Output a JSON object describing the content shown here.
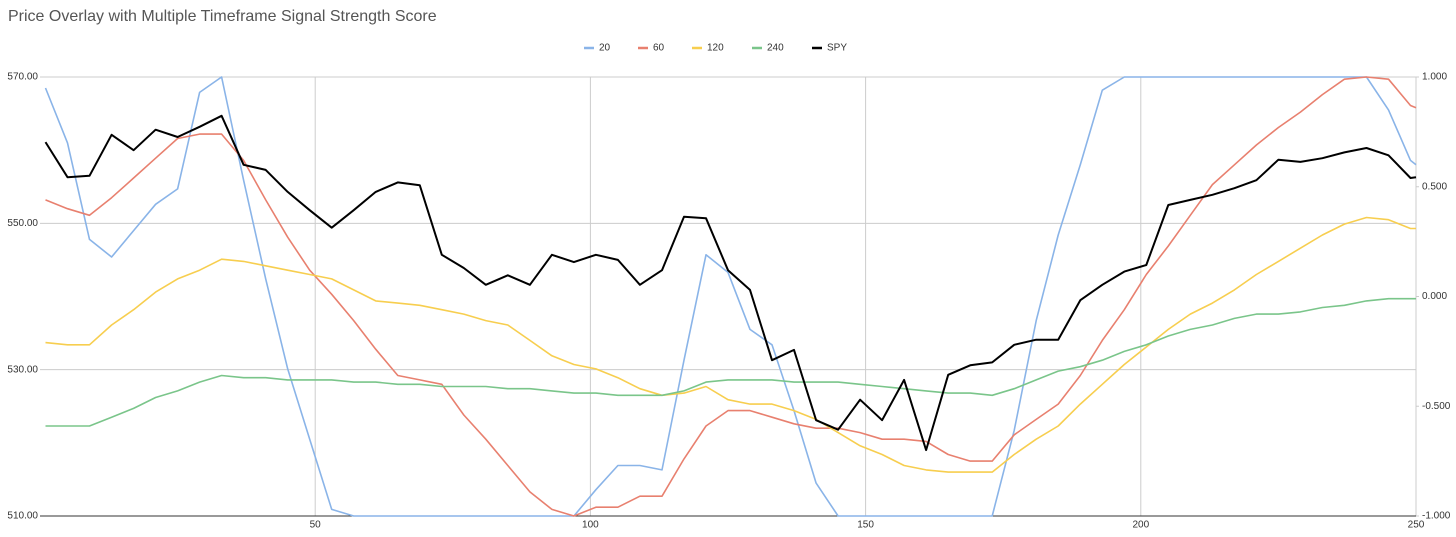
{
  "chart_data": {
    "type": "line",
    "title": "Price Overlay with Multiple Timeframe Signal Strength Score",
    "legend": "top",
    "grid": true,
    "x": [
      1,
      5,
      9,
      13,
      17,
      21,
      25,
      29,
      33,
      37,
      41,
      45,
      49,
      53,
      57,
      61,
      65,
      69,
      73,
      77,
      81,
      85,
      89,
      93,
      97,
      101,
      105,
      109,
      113,
      117,
      121,
      125,
      129,
      133,
      137,
      141,
      145,
      149,
      153,
      157,
      161,
      165,
      169,
      173,
      177,
      181,
      185,
      189,
      193,
      197,
      201,
      205,
      209,
      213,
      217,
      221,
      225,
      229,
      233,
      237,
      241,
      245,
      249,
      250
    ],
    "xlim": [
      0,
      250
    ],
    "xticks": [
      50,
      100,
      150,
      200,
      250
    ],
    "ylim": [
      510,
      570
    ],
    "yticks": [
      {
        "value": 510,
        "label": "510.00"
      },
      {
        "value": 530,
        "label": "530.00"
      },
      {
        "value": 550,
        "label": "550.00"
      },
      {
        "value": 570,
        "label": "570.00"
      }
    ],
    "y2lim": [
      -1,
      1
    ],
    "y2ticks": [
      {
        "value": -1,
        "label": "-1.000"
      },
      {
        "value": -0.5,
        "label": "-0.500"
      },
      {
        "value": 0,
        "label": "0.000"
      },
      {
        "value": 0.5,
        "label": "0.500"
      },
      {
        "value": 1,
        "label": "1.000"
      }
    ],
    "series": [
      {
        "name": "20",
        "color": "#8ab4e8",
        "axis": "y2",
        "values": [
          0.95,
          0.7,
          0.26,
          0.18,
          0.3,
          0.42,
          0.49,
          0.93,
          1.0,
          0.53,
          0.08,
          -0.33,
          -0.65,
          -0.97,
          -1,
          -1,
          -1,
          -1,
          -1,
          -1,
          -1,
          -1,
          -1,
          -1,
          -1,
          -0.88,
          -0.77,
          -0.77,
          -0.79,
          -0.29,
          0.19,
          0.11,
          -0.15,
          -0.22,
          -0.52,
          -0.85,
          -1,
          -1,
          -1,
          -1,
          -1,
          -1,
          -1,
          -1,
          -0.61,
          -0.11,
          0.28,
          0.6,
          0.94,
          1,
          1,
          1,
          1,
          1,
          1,
          1,
          1,
          1,
          1,
          1,
          1,
          0.85,
          0.62,
          0.6
        ]
      },
      {
        "name": "60",
        "color": "#e8806f",
        "axis": "y2",
        "values": [
          0.44,
          0.4,
          0.37,
          0.45,
          0.54,
          0.63,
          0.72,
          0.74,
          0.74,
          0.62,
          0.44,
          0.27,
          0.12,
          0.01,
          -0.11,
          -0.24,
          -0.36,
          -0.38,
          -0.4,
          -0.54,
          -0.65,
          -0.77,
          -0.89,
          -0.97,
          -1,
          -0.96,
          -0.96,
          -0.91,
          -0.91,
          -0.74,
          -0.59,
          -0.52,
          -0.52,
          -0.55,
          -0.58,
          -0.6,
          -0.6,
          -0.62,
          -0.65,
          -0.65,
          -0.66,
          -0.72,
          -0.75,
          -0.75,
          -0.63,
          -0.56,
          -0.49,
          -0.36,
          -0.2,
          -0.06,
          0.1,
          0.23,
          0.37,
          0.51,
          0.6,
          0.69,
          0.77,
          0.84,
          0.92,
          0.99,
          1,
          0.99,
          0.87,
          0.86
        ]
      },
      {
        "name": "120",
        "color": "#f7ce4f",
        "axis": "y2",
        "values": [
          -0.21,
          -0.22,
          -0.22,
          -0.13,
          -0.06,
          0.02,
          0.08,
          0.12,
          0.17,
          0.16,
          0.14,
          0.12,
          0.1,
          0.08,
          0.03,
          -0.02,
          -0.03,
          -0.04,
          -0.06,
          -0.08,
          -0.11,
          -0.13,
          -0.2,
          -0.27,
          -0.31,
          -0.33,
          -0.37,
          -0.42,
          -0.45,
          -0.44,
          -0.41,
          -0.47,
          -0.49,
          -0.49,
          -0.52,
          -0.56,
          -0.62,
          -0.68,
          -0.72,
          -0.77,
          -0.79,
          -0.8,
          -0.8,
          -0.8,
          -0.72,
          -0.65,
          -0.59,
          -0.49,
          -0.4,
          -0.31,
          -0.23,
          -0.15,
          -0.08,
          -0.03,
          0.03,
          0.1,
          0.16,
          0.22,
          0.28,
          0.33,
          0.36,
          0.35,
          0.31,
          0.31
        ]
      },
      {
        "name": "240",
        "color": "#7ac58a",
        "axis": "y2",
        "values": [
          -0.59,
          -0.59,
          -0.59,
          -0.55,
          -0.51,
          -0.46,
          -0.43,
          -0.39,
          -0.36,
          -0.37,
          -0.37,
          -0.38,
          -0.38,
          -0.38,
          -0.39,
          -0.39,
          -0.4,
          -0.4,
          -0.41,
          -0.41,
          -0.41,
          -0.42,
          -0.42,
          -0.43,
          -0.44,
          -0.44,
          -0.45,
          -0.45,
          -0.45,
          -0.43,
          -0.39,
          -0.38,
          -0.38,
          -0.38,
          -0.39,
          -0.39,
          -0.39,
          -0.4,
          -0.41,
          -0.42,
          -0.43,
          -0.44,
          -0.44,
          -0.45,
          -0.42,
          -0.38,
          -0.34,
          -0.32,
          -0.29,
          -0.25,
          -0.22,
          -0.18,
          -0.15,
          -0.13,
          -0.1,
          -0.08,
          -0.08,
          -0.07,
          -0.05,
          -0.04,
          -0.02,
          -0.01,
          -0.01,
          -0.01
        ]
      },
      {
        "name": "SPY",
        "color": "#000000",
        "values": [
          561.1,
          556.3,
          556.5,
          562.1,
          560.0,
          562.8,
          561.8,
          563.2,
          564.7,
          558.0,
          557.3,
          554.3,
          551.8,
          549.4,
          551.8,
          554.3,
          555.6,
          555.2,
          545.7,
          543.9,
          541.6,
          542.9,
          541.6,
          545.7,
          544.7,
          545.7,
          545.0,
          541.6,
          543.6,
          550.9,
          550.7,
          543.6,
          540.9,
          531.3,
          532.7,
          523.1,
          521.8,
          525.9,
          523.1,
          528.6,
          519.0,
          529.3,
          530.6,
          531.0,
          533.4,
          534.1,
          534.1,
          539.5,
          541.6,
          543.4,
          544.3,
          552.5,
          553.2,
          553.9,
          554.8,
          555.9,
          558.7,
          558.4,
          558.9,
          559.7,
          560.3,
          559.3,
          556.2,
          556.3
        ]
      }
    ]
  }
}
